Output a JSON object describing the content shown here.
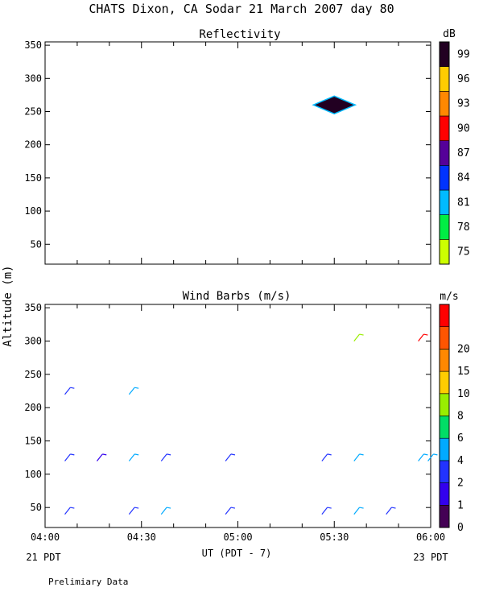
{
  "title": "CHATS Dixon, CA  Sodar  21 March 2007  day  80",
  "ylabel": "Altitude (m)",
  "xlabel": "UT  (PDT - 7)",
  "left_date": "21 PDT",
  "right_date": "23 PDT",
  "footer": "Prelimiary Data",
  "chart_data": [
    {
      "type": "heatmap",
      "title": "Reflectivity",
      "xlabel": "UT  (PDT - 7)",
      "ylabel": "Altitude (m)",
      "x_ticks": [
        "04:00",
        "04:30",
        "05:00",
        "05:30",
        "06:00"
      ],
      "xlim_minutes_utc": [
        240,
        360
      ],
      "ylim": [
        20,
        355
      ],
      "y_ticks": [
        50,
        100,
        150,
        200,
        250,
        300,
        350
      ],
      "colorbar": {
        "unit": "dB",
        "ticks": [
          75,
          78,
          81,
          84,
          87,
          90,
          93,
          96,
          99
        ],
        "colors": [
          "#ccff00",
          "#00ee44",
          "#00bbff",
          "#0033ff",
          "#550099",
          "#ff0000",
          "#ff8800",
          "#ffcc00",
          "#220022"
        ]
      },
      "cells": [
        {
          "time": "05:30",
          "altitude": 260,
          "dB": 100
        }
      ]
    },
    {
      "type": "scatter",
      "subtype": "wind-barbs",
      "title": "Wind Barbs (m/s)",
      "xlabel": "UT  (PDT - 7)",
      "ylabel": "Altitude (m)",
      "x_ticks": [
        "04:00",
        "04:30",
        "05:00",
        "05:30",
        "06:00"
      ],
      "xlim_minutes_utc": [
        240,
        360
      ],
      "ylim": [
        20,
        355
      ],
      "y_ticks": [
        50,
        100,
        150,
        200,
        250,
        300,
        350
      ],
      "colorbar": {
        "unit": "m/s",
        "ticks": [
          "0",
          "1",
          "2",
          "4",
          "6",
          "8",
          "10",
          "15",
          "20"
        ],
        "colors": [
          "#440055",
          "#3300ee",
          "#2233ff",
          "#00aaff",
          "#00dd66",
          "#99ee00",
          "#ffcc00",
          "#ff8800",
          "#ff5500",
          "#ff0000"
        ]
      },
      "barbs": [
        {
          "time": "04:07",
          "altitude": 45,
          "speed_color": "#2233ff"
        },
        {
          "time": "04:07",
          "altitude": 125,
          "speed_color": "#2233ff"
        },
        {
          "time": "04:07",
          "altitude": 225,
          "speed_color": "#2233ff"
        },
        {
          "time": "04:17",
          "altitude": 125,
          "speed_color": "#3300ee"
        },
        {
          "time": "04:27",
          "altitude": 45,
          "speed_color": "#2233ff"
        },
        {
          "time": "04:27",
          "altitude": 125,
          "speed_color": "#00aaff"
        },
        {
          "time": "04:27",
          "altitude": 225,
          "speed_color": "#00aaff"
        },
        {
          "time": "04:37",
          "altitude": 45,
          "speed_color": "#00aaff"
        },
        {
          "time": "04:37",
          "altitude": 125,
          "speed_color": "#2233ff"
        },
        {
          "time": "04:57",
          "altitude": 45,
          "speed_color": "#2233ff"
        },
        {
          "time": "04:57",
          "altitude": 125,
          "speed_color": "#2233ff"
        },
        {
          "time": "05:27",
          "altitude": 45,
          "speed_color": "#2233ff"
        },
        {
          "time": "05:27",
          "altitude": 125,
          "speed_color": "#2233ff"
        },
        {
          "time": "05:37",
          "altitude": 45,
          "speed_color": "#00aaff"
        },
        {
          "time": "05:37",
          "altitude": 125,
          "speed_color": "#00aaff"
        },
        {
          "time": "05:37",
          "altitude": 305,
          "speed_color": "#99ee00"
        },
        {
          "time": "05:47",
          "altitude": 45,
          "speed_color": "#2233ff"
        },
        {
          "time": "05:57",
          "altitude": 125,
          "speed_color": "#00aaff"
        },
        {
          "time": "05:57",
          "altitude": 305,
          "speed_color": "#ff0000"
        },
        {
          "time": "06:00",
          "altitude": 125,
          "speed_color": "#00aaff"
        }
      ]
    }
  ]
}
